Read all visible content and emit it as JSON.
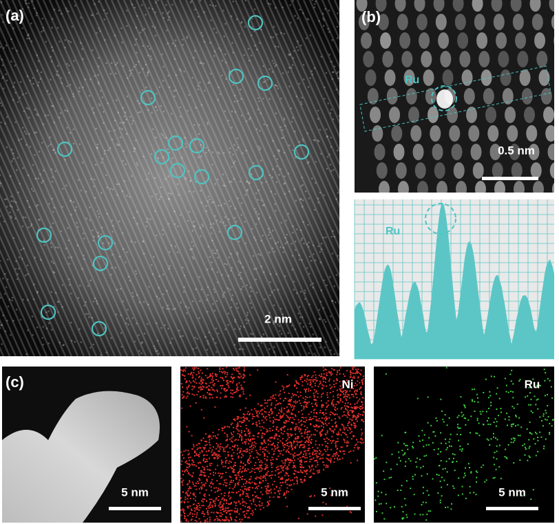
{
  "panel_a": {
    "label": "(a)",
    "scale_bar": "2 nm"
  },
  "panel_b": {
    "label": "(b)",
    "atom_label": "Ru",
    "scale_bar": "0.5 nm",
    "profile_label": "Ru"
  },
  "panel_c": {
    "label": "(c)",
    "images": [
      {
        "scale_bar": "5 nm"
      },
      {
        "element": "Ni",
        "scale_bar": "5 nm"
      },
      {
        "element": "Ru",
        "scale_bar": "5 nm"
      }
    ]
  }
}
